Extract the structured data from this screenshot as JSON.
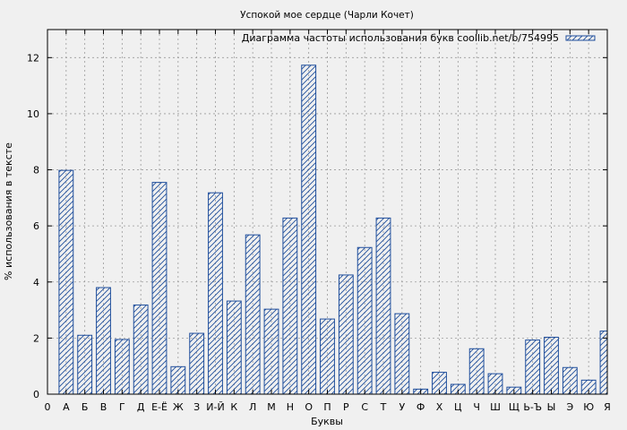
{
  "chart_data": {
    "type": "bar",
    "title": "Успокой мое сердце (Чарли Кочет)",
    "legend": "Диаграмма частоты использования букв coollib.net/b/754995",
    "legend_position": "top-right",
    "xlabel": "Буквы",
    "ylabel": "% использования в тексте",
    "ylim": [
      0,
      13
    ],
    "yticks": [
      0,
      2,
      4,
      6,
      8,
      10,
      12
    ],
    "grid": true,
    "x_tick_labels": [
      "0",
      "А",
      "Б",
      "В",
      "Г",
      "Д",
      "Е-Ё",
      "Ж",
      "З",
      "И-Й",
      "К",
      "Л",
      "М",
      "Н",
      "О",
      "П",
      "Р",
      "С",
      "Т",
      "У",
      "Ф",
      "Х",
      "Ц",
      "Ч",
      "Ш",
      "Щ",
      "Ь-Ъ",
      "Ы",
      "Э",
      "Ю",
      "Я"
    ],
    "categories": [
      "А",
      "Б",
      "В",
      "Г",
      "Д",
      "Е-Ё",
      "Ж",
      "З",
      "И-Й",
      "К",
      "Л",
      "М",
      "Н",
      "О",
      "П",
      "Р",
      "С",
      "Т",
      "У",
      "Ф",
      "Х",
      "Ц",
      "Ч",
      "Ш",
      "Щ",
      "Ь-Ъ",
      "Ы",
      "Э",
      "Ю",
      "Я"
    ],
    "values": [
      7.98,
      2.1,
      3.8,
      1.95,
      3.18,
      7.55,
      0.98,
      2.17,
      7.18,
      3.32,
      5.68,
      3.03,
      6.28,
      11.73,
      2.68,
      4.25,
      5.23,
      6.28,
      2.87,
      0.18,
      0.78,
      0.35,
      1.62,
      0.73,
      0.25,
      1.93,
      2.03,
      0.95,
      0.5,
      2.25
    ],
    "colors": {
      "bar": "#1f4e9c",
      "grid": "#9a9a9a",
      "frame": "#000000",
      "plot_bg": "#f0f0f0"
    }
  }
}
